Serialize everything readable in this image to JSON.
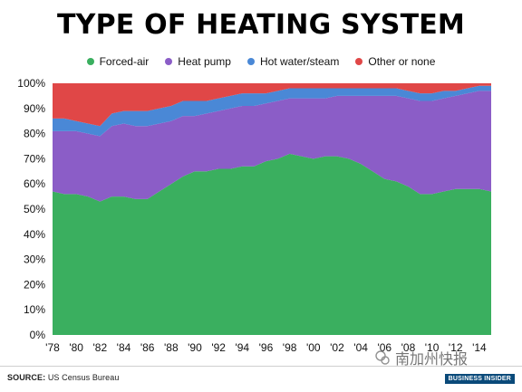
{
  "header": {
    "title": "TYPE OF HEATING SYSTEM"
  },
  "colors": {
    "forced_air": "#3aaf5f",
    "heat_pump": "#8b5dc7",
    "hot_water_steam": "#4a88d6",
    "other_or_none": "#e04747",
    "grid": "#ffffff",
    "axis_text": "#111111"
  },
  "chart_data": {
    "type": "area",
    "stacked": true,
    "title": "TYPE OF HEATING SYSTEM",
    "xlabel": "",
    "ylabel": "",
    "ylim": [
      0,
      100
    ],
    "legend_position": "top-center",
    "grid": false,
    "x": [
      1978,
      1979,
      1980,
      1981,
      1982,
      1983,
      1984,
      1985,
      1986,
      1987,
      1988,
      1989,
      1990,
      1991,
      1992,
      1993,
      1994,
      1995,
      1996,
      1997,
      1998,
      1999,
      2000,
      2001,
      2002,
      2003,
      2004,
      2005,
      2006,
      2007,
      2008,
      2009,
      2010,
      2011,
      2012,
      2013,
      2014,
      2015
    ],
    "x_tick_labels": [
      "'78",
      "'80",
      "'82",
      "'84",
      "'86",
      "'88",
      "'90",
      "'92",
      "'94",
      "'96",
      "'98",
      "'00",
      "'02",
      "'04",
      "'06",
      "'08",
      "'10",
      "'12",
      "'14"
    ],
    "y_tick_labels": [
      "0%",
      "10%",
      "20%",
      "30%",
      "40%",
      "50%",
      "60%",
      "70%",
      "80%",
      "90%",
      "100%"
    ],
    "series": [
      {
        "name": "Forced-air",
        "color_key": "forced_air",
        "values": [
          57,
          56,
          56,
          55,
          53,
          55,
          55,
          54,
          54,
          57,
          60,
          63,
          65,
          65,
          66,
          66,
          67,
          67,
          69,
          70,
          72,
          71,
          70,
          71,
          71,
          70,
          68,
          65,
          62,
          61,
          59,
          56,
          56,
          57,
          58,
          58,
          58,
          57
        ]
      },
      {
        "name": "Heat pump",
        "color_key": "heat_pump",
        "values": [
          24,
          25,
          25,
          25,
          26,
          28,
          29,
          29,
          29,
          27,
          25,
          24,
          22,
          23,
          23,
          24,
          24,
          24,
          23,
          23,
          22,
          23,
          24,
          23,
          24,
          25,
          27,
          30,
          33,
          34,
          35,
          37,
          37,
          37,
          37,
          38,
          39,
          40
        ]
      },
      {
        "name": "Hot water/steam",
        "color_key": "hot_water_steam",
        "values": [
          5,
          5,
          4,
          4,
          4,
          5,
          5,
          6,
          6,
          6,
          6,
          6,
          6,
          5,
          5,
          5,
          5,
          5,
          4,
          4,
          4,
          4,
          4,
          4,
          3,
          3,
          3,
          3,
          3,
          3,
          3,
          3,
          3,
          3,
          2,
          2,
          2,
          2
        ]
      },
      {
        "name": "Other or none",
        "color_key": "other_or_none",
        "values": [
          14,
          14,
          15,
          16,
          17,
          12,
          11,
          11,
          11,
          10,
          9,
          7,
          7,
          7,
          6,
          5,
          4,
          4,
          4,
          3,
          2,
          2,
          2,
          2,
          2,
          2,
          2,
          2,
          2,
          2,
          3,
          4,
          4,
          3,
          3,
          2,
          1,
          1
        ]
      }
    ]
  },
  "footer": {
    "source_label": "SOURCE:",
    "source_text": "US Census Bureau",
    "logo_text": "BUSINESS INSIDER",
    "watermark_text": "南加州快报"
  }
}
